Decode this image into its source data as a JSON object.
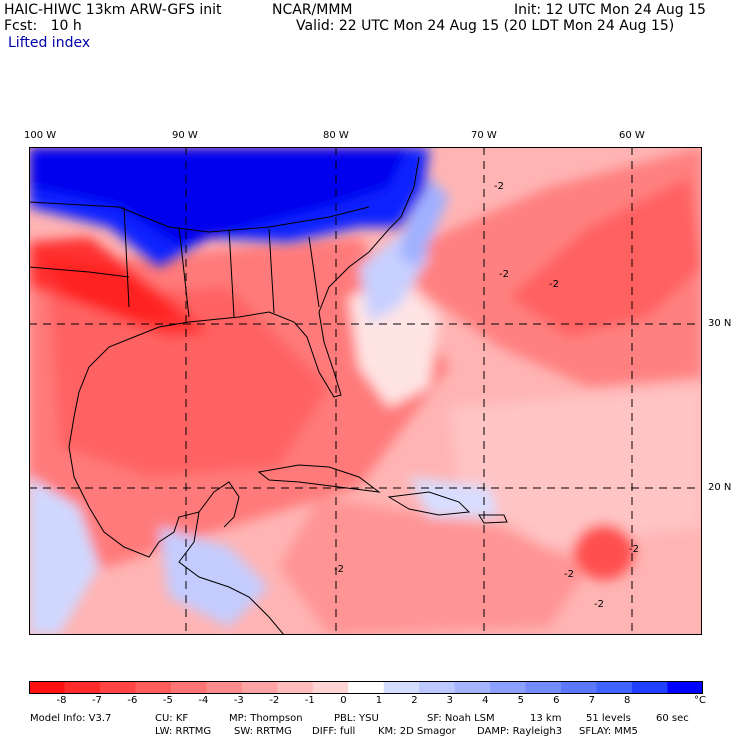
{
  "header": {
    "model": "HAIC-HIWC 13km ARW-GFS init",
    "org": "NCAR/MMM",
    "fcst": "Fcst:   10 h",
    "init": "Init: 12 UTC Mon 24 Aug 15",
    "valid": "Valid: 22 UTC Mon 24 Aug 15 (20 LDT Mon 24 Aug 15)",
    "field": "Lifted index"
  },
  "axes": {
    "lon_labels": [
      "100 W",
      "90 W",
      "80 W",
      "70 W",
      "60 W"
    ],
    "lat_labels": [
      "30 N",
      "20 N"
    ]
  },
  "colorbar": {
    "labels": [
      "-8",
      "-7",
      "-6",
      "-5",
      "-4",
      "-3",
      "-2",
      "-1",
      "0",
      "1",
      "2",
      "3",
      "4",
      "5",
      "6",
      "7",
      "8"
    ],
    "unit": "°C",
    "colors": [
      "#ff1010",
      "#ff2a2a",
      "#ff4444",
      "#ff5c5c",
      "#ff7474",
      "#ff8c8c",
      "#ffa4a4",
      "#ffbcbc",
      "#ffd4d4",
      "#ffffff",
      "#d4dcff",
      "#bcc8ff",
      "#a4b4ff",
      "#8ca0ff",
      "#748cff",
      "#5c78ff",
      "#4064ff",
      "#2040ff",
      "#0000ff"
    ]
  },
  "contour_labels": [
    "-2",
    "-2",
    "-2",
    "-2",
    "-2",
    "-2",
    "-2"
  ],
  "footer": {
    "line1": [
      "Model Info: V3.7",
      "CU: KF",
      "MP: Thompson",
      "PBL: YSU",
      "SF: Noah LSM",
      "13 km",
      "51 levels",
      "60 sec"
    ],
    "line2": [
      "LW: RRTMG",
      "SW: RRTMG",
      "DIFF: full",
      "KM: 2D Smagor",
      "DAMP: Rayleigh3",
      "SFLAY: MM5"
    ]
  }
}
